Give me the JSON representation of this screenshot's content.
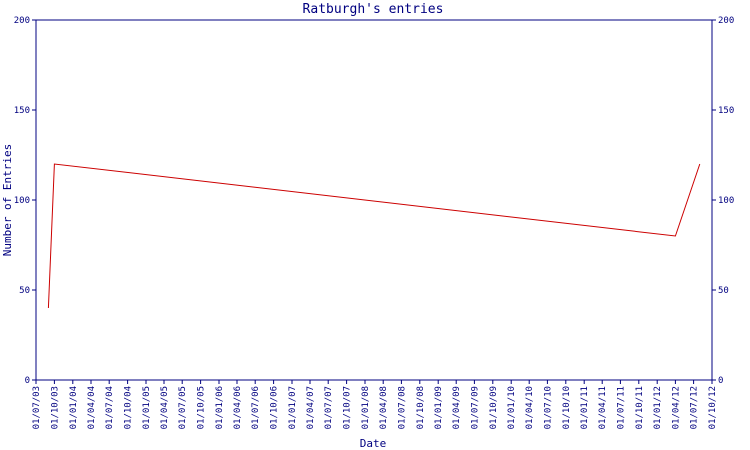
{
  "chart_data": {
    "type": "line",
    "title": "Ratburgh's entries",
    "x_label": "Date",
    "y_label": "Number of Entries",
    "x": [
      "01/09/03",
      "01/10/03",
      "01/04/12",
      "01/08/12"
    ],
    "series": [
      {
        "name": "Entries",
        "color": "#cc0000",
        "values": [
          40,
          120,
          80,
          120
        ]
      }
    ],
    "xlim": [
      "01/07/03",
      "01/10/12"
    ],
    "xticks": [
      "01/07/03",
      "01/10/03",
      "01/01/04",
      "01/04/04",
      "01/07/04",
      "01/10/04",
      "01/01/05",
      "01/04/05",
      "01/07/05",
      "01/10/05",
      "01/01/06",
      "01/04/06",
      "01/07/06",
      "01/10/06",
      "01/01/07",
      "01/04/07",
      "01/07/07",
      "01/10/07",
      "01/01/08",
      "01/04/08",
      "01/07/08",
      "01/10/08",
      "01/01/09",
      "01/04/09",
      "01/07/09",
      "01/10/09",
      "01/01/10",
      "01/04/10",
      "01/07/10",
      "01/10/10",
      "01/01/11",
      "01/04/11",
      "01/07/11",
      "01/10/11",
      "01/01/12",
      "01/04/12",
      "01/07/12",
      "01/10/12"
    ],
    "ylim": [
      0,
      200
    ],
    "yticks": [
      0,
      50,
      100,
      150,
      200
    ],
    "y2lim": [
      0,
      200
    ],
    "y2ticks": [
      0,
      50,
      100,
      150,
      200
    ],
    "axis_color": "#000080"
  }
}
